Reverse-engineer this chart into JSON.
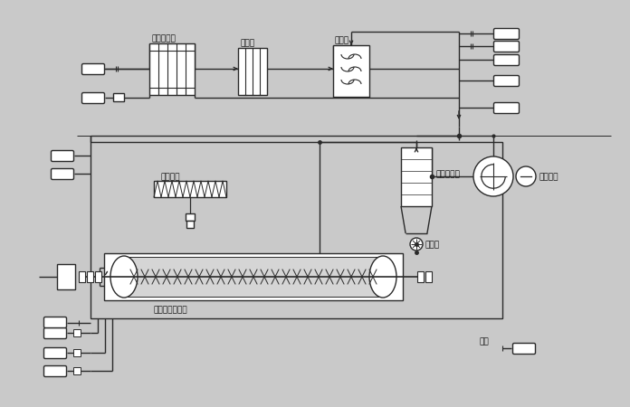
{
  "bg_color": "#c9c9c9",
  "line_color": "#2a2a2a",
  "labels": {
    "steam_heat_exchanger": "蒸汽换热器",
    "demister": "除雾器",
    "surface_cooler": "表冷器",
    "feed_screw": "加料绞龙",
    "bag_filter": "袋式除尘器",
    "fan": "循环风机",
    "rotary_valve": "关风器",
    "paddle_dryer": "桨叶干燥冷却机",
    "product": "产品"
  },
  "figsize": [
    6.96,
    4.5
  ],
  "dpi": 100
}
